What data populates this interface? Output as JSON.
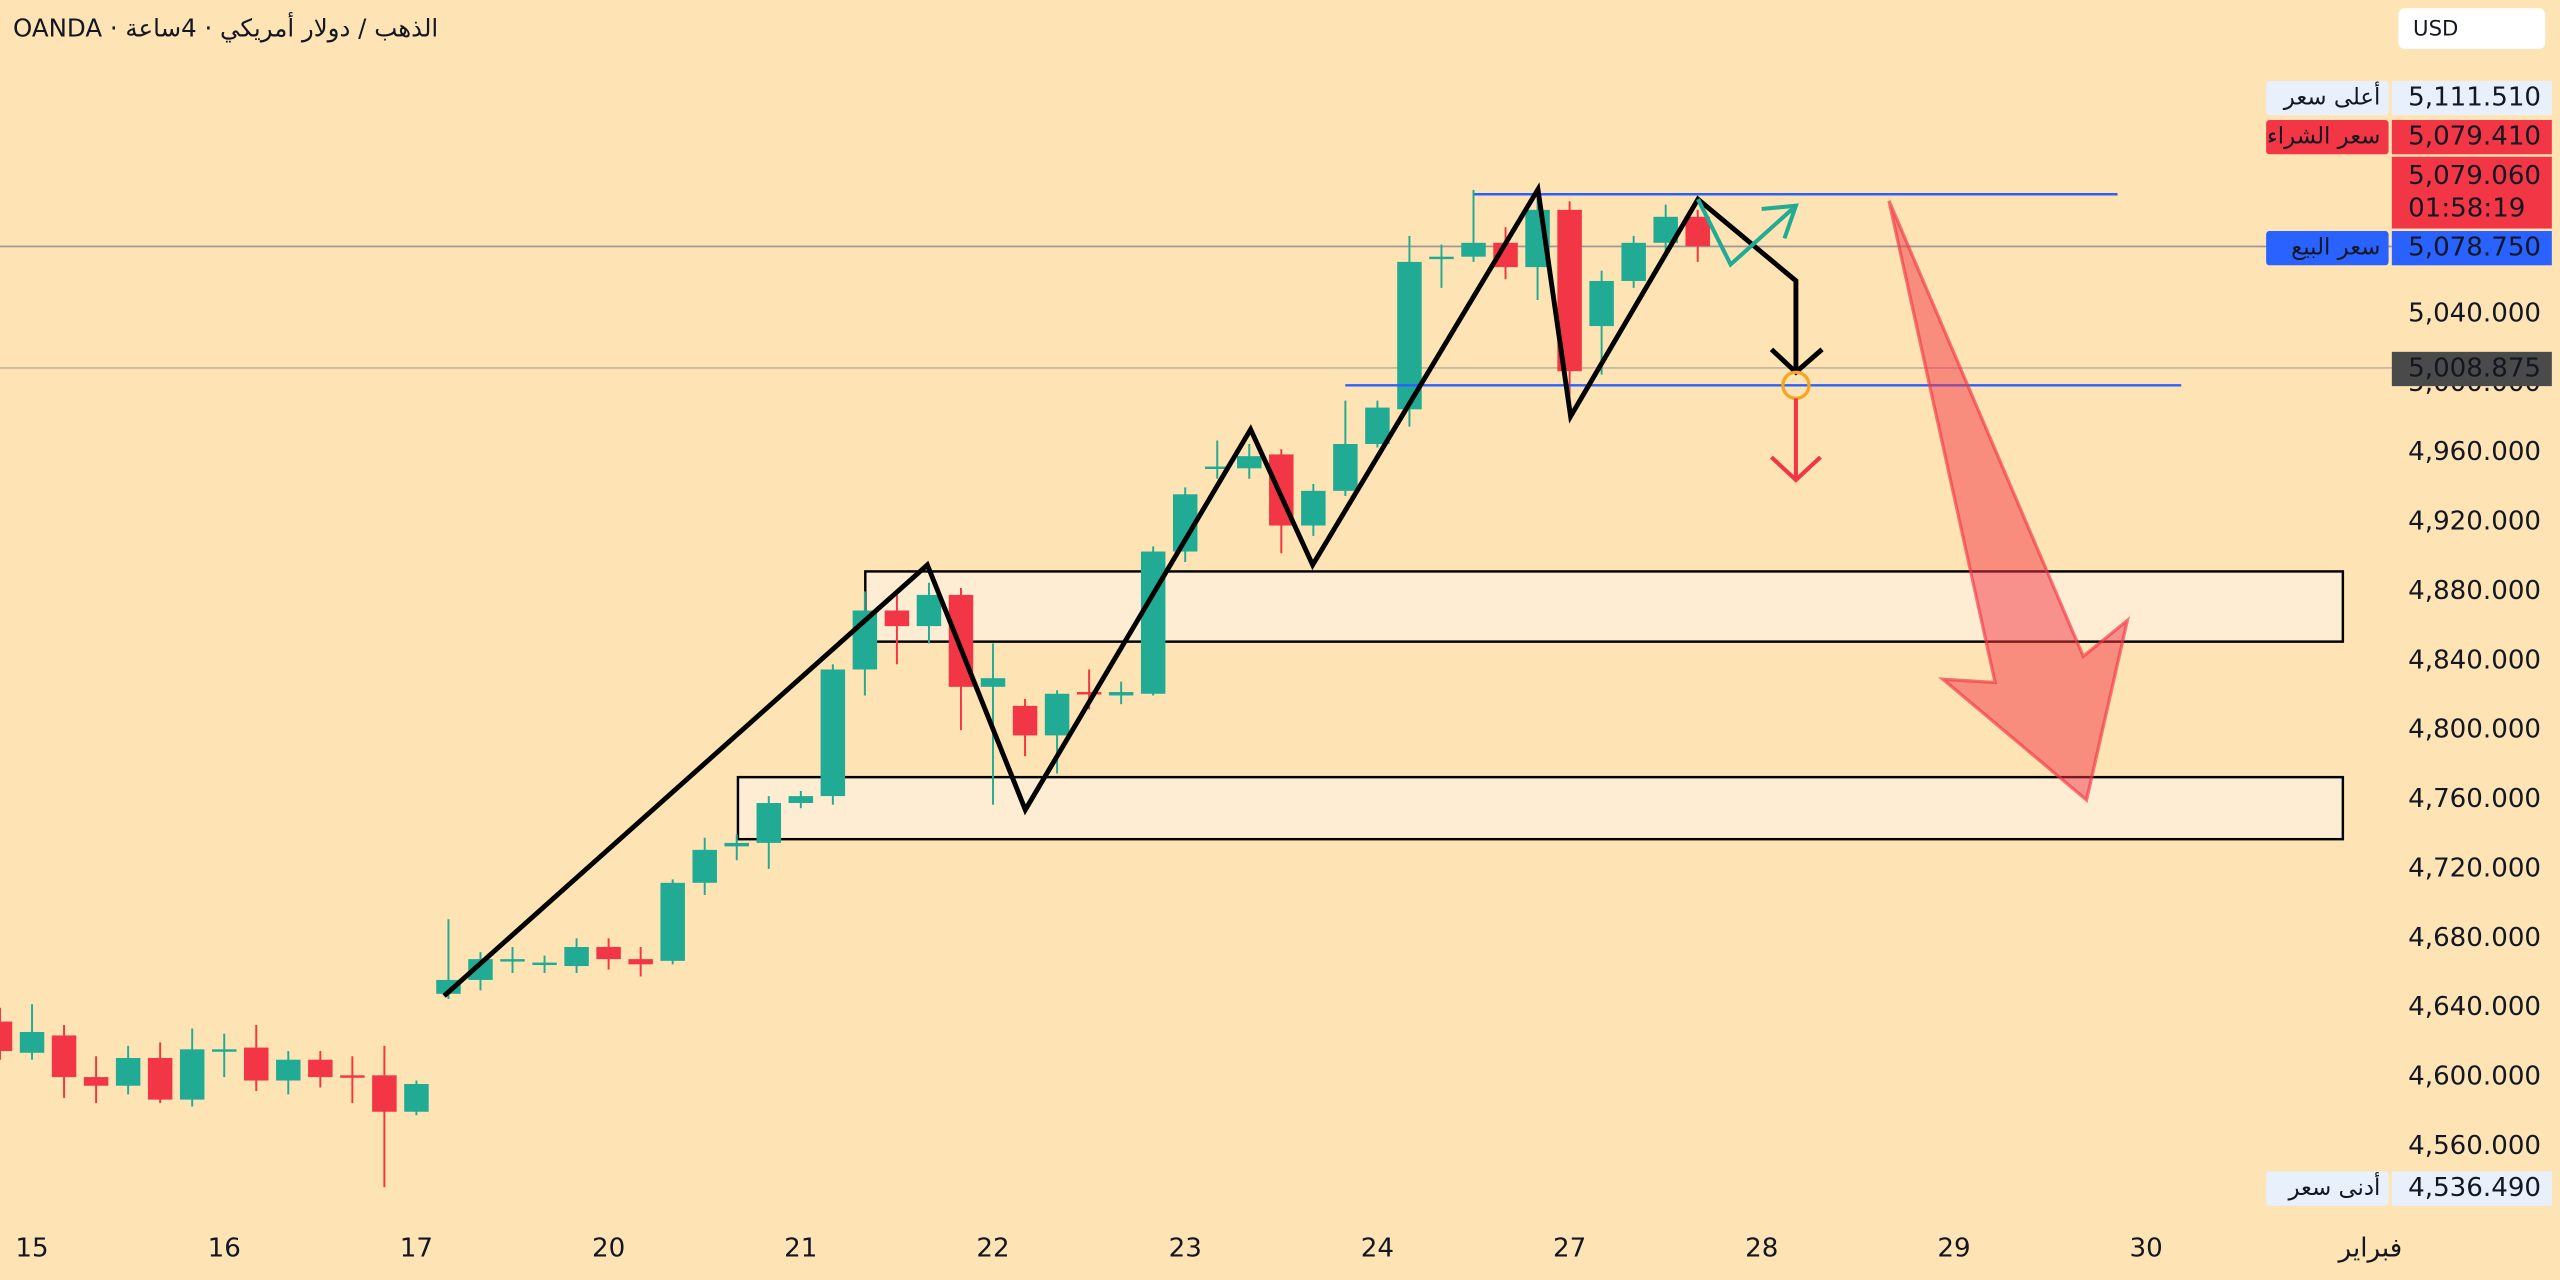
{
  "chart_data": {
    "type": "candlestick",
    "title": "OANDA · الذهب / دولار أمريكي · 4ساعة",
    "currency": "USD",
    "background": "#fee3b4",
    "up_color": "#22ab94",
    "down_color": "#f23645",
    "categories": [
      null,
      "15",
      null,
      null,
      null,
      null,
      null,
      "16",
      null,
      null,
      null,
      null,
      null,
      "17",
      null,
      null,
      null,
      null,
      null,
      "20",
      null,
      null,
      null,
      null,
      null,
      "21",
      null,
      null,
      null,
      null,
      null,
      "22",
      null,
      null,
      null,
      null,
      null,
      "23",
      null,
      null,
      null,
      null,
      null,
      "24",
      null,
      null,
      null,
      null,
      null,
      "27",
      null,
      null,
      null,
      null,
      null,
      "28",
      null,
      null,
      null,
      null,
      null,
      "29",
      null,
      null,
      null,
      null,
      null,
      "30",
      null,
      null,
      null,
      null,
      null,
      null,
      "فبراير"
    ],
    "open": [
      4632,
      4614,
      4624,
      4600,
      4595,
      4611,
      4587,
      4615,
      4617,
      4598,
      4610,
      4601,
      4601,
      4580,
      4648,
      4656,
      4667,
      4665,
      4664,
      4675,
      4668,
      4667,
      4712,
      4733,
      4735,
      4758,
      4762,
      4835,
      4869,
      4860,
      4878,
      4825,
      4814,
      4797,
      4822,
      4820,
      4821,
      4903,
      4951,
      4951,
      4959,
      4918,
      4938,
      4965,
      4985,
      5072,
      5073,
      5081,
      5067,
      5100,
      5033,
      5059,
      5081,
      5096,
      null,
      null,
      null,
      null,
      null,
      null,
      null,
      null,
      null,
      null,
      null,
      null,
      null,
      null,
      null,
      null,
      null,
      null,
      null,
      null,
      null
    ],
    "high": [
      4640,
      4642,
      4630,
      4612,
      4618,
      4620,
      4628,
      4625,
      4630,
      4615,
      4615,
      4612,
      4618,
      4598,
      4691,
      4672,
      4675,
      4670,
      4680,
      4680,
      4675,
      4714,
      4738,
      4740,
      4762,
      4765,
      4838,
      4880,
      4878,
      4885,
      4882,
      4850,
      4818,
      4823,
      4835,
      4828,
      4906,
      4940,
      4967,
      4965,
      4962,
      4942,
      4990,
      4990,
      5085,
      5080,
      5111.51,
      5090,
      5110,
      5105,
      5065,
      5085,
      5103,
      5100,
      null,
      null,
      null,
      null,
      null,
      null,
      null,
      null,
      null,
      null,
      null,
      null,
      null,
      null,
      null,
      null,
      null,
      null,
      null,
      null,
      null
    ],
    "low": [
      4610,
      4610,
      4588,
      4585,
      4590,
      4585,
      4583,
      4600,
      4592,
      4590,
      4594,
      4585,
      4536.49,
      4578,
      4645,
      4650,
      4660,
      4660,
      4660,
      4662,
      4658,
      4665,
      4705,
      4725,
      4720,
      4755,
      4757,
      4820,
      4838,
      4850,
      4800,
      4757,
      4785,
      4775,
      4812,
      4815,
      4820,
      4897,
      4945,
      4945,
      4902,
      4912,
      4935,
      4963,
      4975,
      5055,
      5070,
      5060,
      5048,
      4980,
      5005,
      5055,
      5075,
      5070,
      null,
      null,
      null,
      null,
      null,
      null,
      null,
      null,
      null,
      null,
      null,
      null,
      null,
      null,
      null,
      null,
      null,
      null,
      null,
      null,
      null
    ],
    "close": [
      4615,
      4626,
      4600,
      4595,
      4611,
      4587,
      4616,
      4616,
      4598,
      4610,
      4600,
      4600,
      4580,
      4596,
      4656,
      4668,
      4668,
      4666,
      4675,
      4668,
      4665,
      4712,
      4731,
      4735,
      4758,
      4762,
      4835,
      4869,
      4860,
      4878,
      4825,
      4830,
      4797,
      4821,
      4821,
      4822,
      4903,
      4936,
      4952,
      4958,
      4918,
      4938,
      4965,
      4986,
      5070,
      5073,
      5081,
      5067,
      5100,
      5007,
      5059,
      5081,
      5096,
      5079.06,
      null,
      null,
      null,
      null,
      null,
      null,
      null,
      null,
      null,
      null,
      null,
      null,
      null,
      null,
      null,
      null,
      null,
      null,
      null,
      null,
      null
    ],
    "ylim": [
      4515,
      5221
    ],
    "yticks": [
      {
        "value": 4560,
        "label": "4,560.000"
      },
      {
        "value": 4600,
        "label": "4,600.000"
      },
      {
        "value": 4640,
        "label": "4,640.000"
      },
      {
        "value": 4680,
        "label": "4,680.000"
      },
      {
        "value": 4720,
        "label": "4,720.000"
      },
      {
        "value": 4760,
        "label": "4,760.000"
      },
      {
        "value": 4800,
        "label": "4,800.000"
      },
      {
        "value": 4840,
        "label": "4,840.000"
      },
      {
        "value": 4880,
        "label": "4,880.000"
      },
      {
        "value": 4920,
        "label": "4,920.000"
      },
      {
        "value": 4960,
        "label": "4,960.000"
      },
      {
        "value": 5000,
        "label": "5,000.000"
      },
      {
        "value": 5040,
        "label": "5,040.000"
      }
    ],
    "price_labels": [
      {
        "name": "أعلى سعر",
        "value": 5111.51,
        "label": "5,111.510",
        "color": "#e8f0fb"
      },
      {
        "name": "سعر الشراء",
        "value": 5079.41,
        "label": "5,079.410",
        "color": "#f23645"
      },
      {
        "value": 5079.06,
        "label": "5,079.060",
        "countdown": "01:58:19",
        "color": "#f23645"
      },
      {
        "name": "سعر البيع",
        "value": 5078.75,
        "label": "5,078.750",
        "color": "#2962ff"
      },
      {
        "value": 5008.875,
        "label": "5,008.875",
        "color": "#4a4a4a"
      },
      {
        "name": "أدنى سعر",
        "value": 4536.49,
        "label": "4,536.490",
        "color": "#e8f0fb"
      }
    ]
  }
}
